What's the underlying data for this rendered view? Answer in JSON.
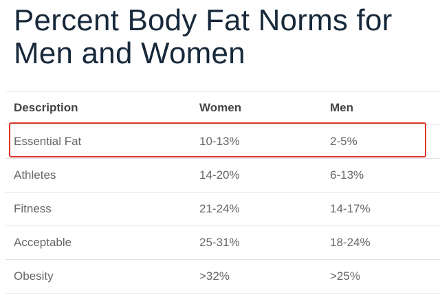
{
  "header": {
    "title": "Percent Body Fat Norms for Men and Women"
  },
  "table": {
    "columns": [
      "Description",
      "Women",
      "Men"
    ],
    "rows": [
      [
        "Essential Fat",
        "10-13%",
        "2-5%"
      ],
      [
        "Athletes",
        "14-20%",
        "6-13%"
      ],
      [
        "Fitness",
        "21-24%",
        "14-17%"
      ],
      [
        "Acceptable",
        "25-31%",
        "18-24%"
      ],
      [
        "Obesity",
        ">32%",
        ">25%"
      ]
    ]
  }
}
